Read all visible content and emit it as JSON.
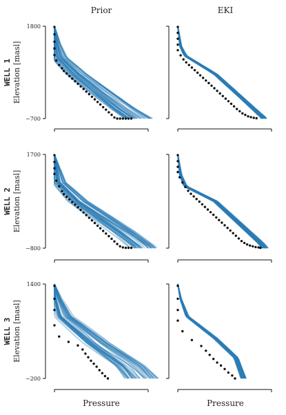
{
  "figure": {
    "columns": [
      {
        "title": "Prior",
        "xlabel": "Pressure"
      },
      {
        "title": "EKI",
        "xlabel": "Pressure"
      }
    ]
  },
  "chart_data": [
    {
      "type": "line",
      "well": "WELL 1",
      "ylabel": "Elevation [masl]",
      "ylim": [
        -700,
        1800
      ],
      "yticks": [
        "1800",
        "−700"
      ],
      "xlim": [
        0,
        1
      ],
      "col": 0,
      "row": 0,
      "ensemble_size": 40,
      "ensemble_spread": 0.16,
      "observations": {
        "x": [
          0.0,
          0.0,
          0.0,
          0.0,
          0.0,
          0.02,
          0.05,
          0.08,
          0.1,
          0.13,
          0.16,
          0.19,
          0.22,
          0.25,
          0.28,
          0.31,
          0.34,
          0.37,
          0.4,
          0.43,
          0.46,
          0.49,
          0.52,
          0.55,
          0.58,
          0.61,
          0.64,
          0.67,
          0.7,
          0.73,
          0.76,
          0.79,
          0.82
        ],
        "y": [
          1780,
          1580,
          1380,
          1200,
          1020,
          870,
          750,
          660,
          590,
          520,
          450,
          380,
          310,
          240,
          170,
          100,
          30,
          -40,
          -110,
          -180,
          -250,
          -320,
          -390,
          -460,
          -530,
          -600,
          -670,
          -700,
          -700,
          -700,
          -700,
          -700,
          -700
        ]
      },
      "ensemble_mean": {
        "x": [
          0.0,
          0.02,
          0.06,
          0.25,
          0.75,
          0.9
        ],
        "y": [
          1800,
          1300,
          950,
          500,
          -450,
          -700
        ]
      }
    },
    {
      "type": "line",
      "well": "WELL 1",
      "ylabel": "Elevation [masl]",
      "ylim": [
        -700,
        1800
      ],
      "yticks": [
        "",
        ""
      ],
      "xlim": [
        0,
        1
      ],
      "col": 1,
      "row": 0,
      "ensemble_size": 40,
      "ensemble_spread": 0.03,
      "observations": {
        "x": [
          0.0,
          0.0,
          0.0,
          0.0,
          0.0,
          0.03,
          0.06,
          0.09,
          0.12,
          0.15,
          0.18,
          0.21,
          0.24,
          0.27,
          0.3,
          0.33,
          0.36,
          0.39,
          0.42,
          0.45,
          0.48,
          0.51,
          0.54,
          0.57,
          0.6,
          0.63,
          0.66,
          0.69,
          0.72,
          0.75,
          0.78,
          0.81,
          0.84
        ],
        "y": [
          1780,
          1620,
          1460,
          1300,
          1150,
          1010,
          900,
          820,
          750,
          680,
          610,
          540,
          470,
          400,
          330,
          260,
          190,
          120,
          50,
          -20,
          -90,
          -160,
          -230,
          -300,
          -370,
          -440,
          -500,
          -560,
          -600,
          -640,
          -660,
          -680,
          -690
        ]
      },
      "ensemble_mean": {
        "x": [
          0.0,
          0.03,
          0.08,
          0.4,
          0.88,
          0.92
        ],
        "y": [
          1800,
          1250,
          1000,
          500,
          -600,
          -680
        ]
      }
    },
    {
      "type": "line",
      "well": "WELL 2",
      "ylabel": "Elevation [masl]",
      "ylim": [
        -800,
        1700
      ],
      "yticks": [
        "1700",
        "−800"
      ],
      "xlim": [
        0,
        1
      ],
      "col": 0,
      "row": 1,
      "ensemble_size": 40,
      "ensemble_spread": 0.15,
      "observations": {
        "x": [
          0.0,
          0.0,
          0.0,
          0.0,
          0.02,
          0.05,
          0.08,
          0.1,
          0.13,
          0.16,
          0.19,
          0.22,
          0.25,
          0.28,
          0.31,
          0.34,
          0.37,
          0.4,
          0.43,
          0.46,
          0.49,
          0.52,
          0.55,
          0.58,
          0.61,
          0.64,
          0.67,
          0.7,
          0.73,
          0.76,
          0.79,
          0.82
        ],
        "y": [
          1680,
          1500,
          1330,
          1180,
          1000,
          850,
          720,
          640,
          570,
          500,
          430,
          360,
          290,
          220,
          150,
          80,
          10,
          -60,
          -130,
          -200,
          -270,
          -340,
          -410,
          -480,
          -550,
          -620,
          -690,
          -750,
          -780,
          -790,
          -790,
          -790
        ]
      },
      "ensemble_mean": {
        "x": [
          0.0,
          0.02,
          0.05,
          0.25,
          0.75,
          0.95
        ],
        "y": [
          1700,
          1350,
          950,
          450,
          -400,
          -780
        ]
      }
    },
    {
      "type": "line",
      "well": "WELL 2",
      "ylabel": "Elevation [masl]",
      "ylim": [
        -800,
        1700
      ],
      "yticks": [
        "",
        ""
      ],
      "xlim": [
        0,
        1
      ],
      "col": 1,
      "row": 1,
      "ensemble_size": 40,
      "ensemble_spread": 0.035,
      "observations": {
        "x": [
          0.0,
          0.0,
          0.0,
          0.0,
          0.02,
          0.05,
          0.08,
          0.11,
          0.14,
          0.17,
          0.2,
          0.23,
          0.26,
          0.29,
          0.32,
          0.35,
          0.38,
          0.41,
          0.44,
          0.47,
          0.5,
          0.53,
          0.56,
          0.59,
          0.62,
          0.65,
          0.68,
          0.71,
          0.74,
          0.77,
          0.8,
          0.83,
          0.86,
          0.88
        ],
        "y": [
          1680,
          1520,
          1370,
          1230,
          1090,
          950,
          830,
          730,
          650,
          580,
          510,
          440,
          370,
          300,
          230,
          160,
          90,
          20,
          -50,
          -120,
          -190,
          -260,
          -330,
          -400,
          -470,
          -540,
          -610,
          -660,
          -700,
          -730,
          -750,
          -770,
          -780,
          -790
        ]
      },
      "ensemble_mean": {
        "x": [
          0.0,
          0.03,
          0.08,
          0.4,
          0.88,
          0.93
        ],
        "y": [
          1700,
          1150,
          850,
          450,
          -650,
          -790
        ]
      }
    },
    {
      "type": "line",
      "well": "WELL 3",
      "ylabel": "Elevation [masl]",
      "ylim": [
        -200,
        1400
      ],
      "yticks": [
        "1400",
        "−200"
      ],
      "xlim": [
        0,
        1
      ],
      "col": 0,
      "row": 2,
      "ensemble_size": 40,
      "ensemble_spread": 0.18,
      "observations": {
        "x": [
          0.0,
          0.0,
          0.0,
          0.0,
          0.05,
          0.15,
          0.25,
          0.3,
          0.33,
          0.36,
          0.39,
          0.42,
          0.45,
          0.48,
          0.51,
          0.54,
          0.57
        ],
        "y": [
          1370,
          1150,
          960,
          700,
          510,
          420,
          360,
          290,
          220,
          160,
          100,
          50,
          0,
          -60,
          -110,
          -160,
          -200
        ]
      },
      "ensemble_mean": {
        "x": [
          0.0,
          0.03,
          0.1,
          0.45,
          0.8,
          0.93
        ],
        "y": [
          1400,
          1150,
          850,
          400,
          20,
          -200
        ]
      }
    },
    {
      "type": "line",
      "well": "WELL 3",
      "ylabel": "Elevation [masl]",
      "ylim": [
        -200,
        1400
      ],
      "yticks": [
        "",
        ""
      ],
      "xlim": [
        0,
        1
      ],
      "col": 1,
      "row": 2,
      "ensemble_size": 40,
      "ensemble_spread": 0.03,
      "observations": {
        "x": [
          0.0,
          0.0,
          0.0,
          0.0,
          0.05,
          0.15,
          0.25,
          0.3,
          0.34,
          0.38,
          0.42,
          0.46,
          0.5,
          0.54,
          0.58,
          0.61
        ],
        "y": [
          1370,
          1150,
          960,
          780,
          600,
          450,
          350,
          270,
          200,
          130,
          70,
          20,
          -40,
          -100,
          -150,
          -200
        ]
      },
      "ensemble_mean": {
        "x": [
          0.0,
          0.03,
          0.1,
          0.4,
          0.62,
          0.7
        ],
        "y": [
          1400,
          1150,
          850,
          480,
          150,
          -200
        ]
      }
    }
  ]
}
